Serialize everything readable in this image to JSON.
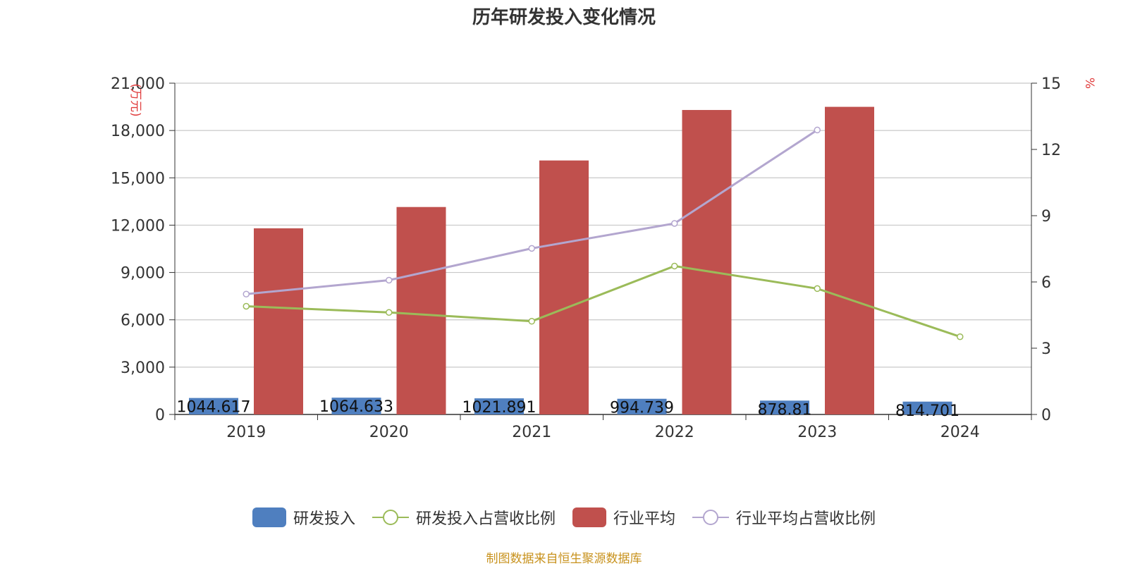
{
  "chart_data": {
    "type": "bar",
    "title": "历年研发投入变化情况",
    "categories": [
      "2019",
      "2020",
      "2021",
      "2022",
      "2023",
      "2024"
    ],
    "y_left": {
      "unit": "万元",
      "ylim": [
        0,
        21000
      ],
      "ticks": [
        "0",
        "3,000",
        "6,000",
        "9,000",
        "12,000",
        "15,000",
        "18,000",
        "21,000"
      ],
      "tick_values": [
        0,
        3000,
        6000,
        9000,
        12000,
        15000,
        18000,
        21000
      ]
    },
    "y_right": {
      "unit": "%",
      "ylim": [
        0,
        15
      ],
      "ticks": [
        "0",
        "3",
        "6",
        "9",
        "12",
        "15"
      ],
      "tick_values": [
        0,
        3,
        6,
        9,
        12,
        15
      ]
    },
    "grid": true,
    "legend_position": "bottom",
    "series": [
      {
        "name": "研发投入",
        "type": "bar",
        "axis": "left",
        "color": "#4f7fbf",
        "values": [
          1044.617,
          1064.633,
          1021.891,
          994.739,
          878.81,
          814.701
        ],
        "labels": [
          "1044.617",
          "1064.633",
          "1021.891",
          "994.739",
          "878.81",
          "814.701"
        ]
      },
      {
        "name": "研发投入占营收比例",
        "type": "line",
        "axis": "right",
        "color": "#9bbb59",
        "values": [
          4.9,
          4.62,
          4.22,
          6.72,
          5.7,
          3.52
        ]
      },
      {
        "name": "行业平均",
        "type": "bar",
        "axis": "left",
        "color": "#c0504d",
        "values": [
          11800,
          13150,
          16100,
          19300,
          19500,
          null
        ]
      },
      {
        "name": "行业平均占营收比例",
        "type": "line",
        "axis": "right",
        "color": "#b3a6cf",
        "values": [
          5.45,
          6.08,
          7.52,
          8.65,
          12.88,
          null
        ]
      }
    ]
  },
  "footer": {
    "source": "制图数据来自恒生聚源数据库"
  }
}
